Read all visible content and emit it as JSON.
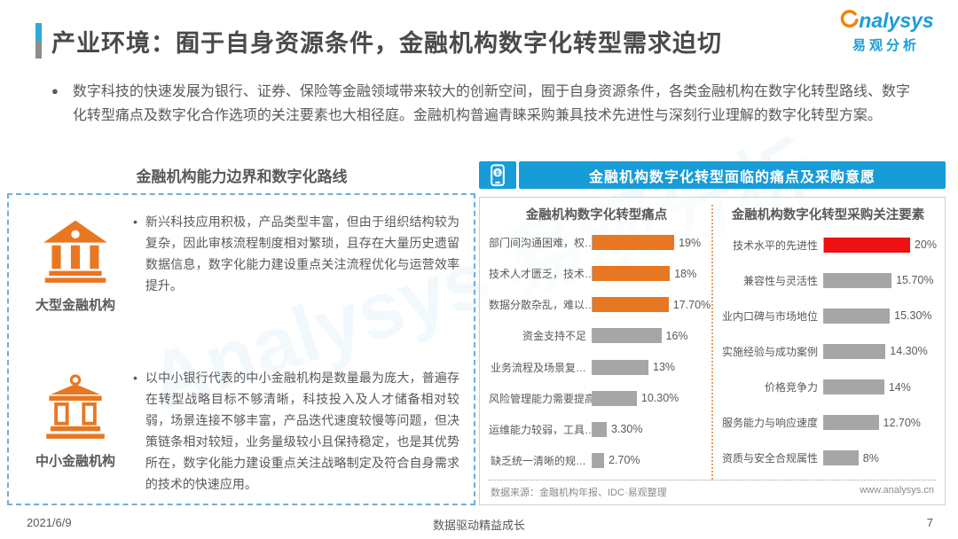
{
  "header": {
    "title": "产业环境：囿于自身资源条件，金融机构数字化转型需求迫切",
    "logo": {
      "brand": "nalysys",
      "subbrand": "易观分析"
    }
  },
  "intro": {
    "bullet_text": "数字科技的快速发展为银行、证券、保险等金融领域带来较大的创新空间，囿于自身资源条件，各类金融机构在数字化转型路线、数字化转型痛点及数字化合作选项的关注要素也大相径庭。金融机构普遍青睐采购兼具技术先进性与深刻行业理解的数字化转型方案。"
  },
  "watermark": {
    "text": "Analysys 易观分析"
  },
  "left_panel": {
    "title": "金融机构能力边界和数字化路线",
    "items": [
      {
        "label": "大型金融机构",
        "icon": "bank-solid-icon",
        "bullet": "•",
        "text": "新兴科技应用积极，产品类型丰富，但由于组织结构较为复杂，因此审核流程制度相对繁琐，且存在大量历史遗留数据信息，数字化能力建设重点关注流程优化与运营效率提升。"
      },
      {
        "label": "中小金融机构",
        "icon": "bank-outline-icon",
        "bullet": "•",
        "text": "以中小银行代表的中小金融机构是数量最为庞大，普遍存在转型战略目标不够清晰，科技投入及人才储备相对较弱，场景连接不够丰富，产品迭代速度较慢等问题，但决策链条相对较短，业务量级较小且保持稳定，也是其优势所在，数字化能力建设重点关注战略制定及符合自身需求的技术的快速应用。"
      }
    ]
  },
  "right_panel": {
    "header": "金融机构数字化转型面临的痛点及采购意愿",
    "source_note": "数据来源：金融机构年报、IDC·易观整理",
    "website": "www.analysys.cn"
  },
  "chart_data": [
    {
      "type": "bar",
      "orientation": "horizontal",
      "title": "金融机构数字化转型痛点",
      "categories": [
        "部门间沟通困难，权…",
        "技术人才匮乏，技术…",
        "数据分散杂乱，难以…",
        "资金支持不足",
        "业务流程及场景复…",
        "风险管理能力需要提高",
        "运维能力较弱，工具…",
        "缺乏统一清晰的规…"
      ],
      "values": [
        19,
        18,
        17.7,
        16,
        13,
        10.3,
        3.3,
        2.7
      ],
      "labels": [
        "19%",
        "18%",
        "17.70%",
        "16%",
        "13%",
        "10.30%",
        "3.30%",
        "2.70%"
      ],
      "colors": [
        "#E87722",
        "#E87722",
        "#E87722",
        "#A6A6A6",
        "#A6A6A6",
        "#A6A6A6",
        "#A6A6A6",
        "#A6A6A6"
      ],
      "xlim": [
        0,
        26
      ],
      "grid": false,
      "legend": false
    },
    {
      "type": "bar",
      "orientation": "horizontal",
      "title": "金融机构数字化转型采购关注要素",
      "categories": [
        "技术水平的先进性",
        "兼容性与灵活性",
        "业内口碑与市场地位",
        "实施经验与成功案例",
        "价格竞争力",
        "服务能力与响应速度",
        "资质与安全合规属性"
      ],
      "values": [
        20,
        15.7,
        15.3,
        14.3,
        14,
        12.7,
        8
      ],
      "labels": [
        "20%",
        "15.70%",
        "15.30%",
        "14.30%",
        "14%",
        "12.70%",
        "8%"
      ],
      "colors": [
        "#ED1111",
        "#A6A6A6",
        "#A6A6A6",
        "#A6A6A6",
        "#A6A6A6",
        "#A6A6A6",
        "#A6A6A6"
      ],
      "xlim": [
        0,
        26
      ],
      "grid": false,
      "legend": false
    }
  ],
  "footer": {
    "date": "2021/6/9",
    "center": "数据驱动精益成长",
    "page": "7"
  },
  "colors": {
    "accent_blue": "#189CD8",
    "accent_orange": "#E87722",
    "highlight_red": "#ED1111",
    "bar_gray": "#A6A6A6",
    "text_gray": "#595959"
  }
}
